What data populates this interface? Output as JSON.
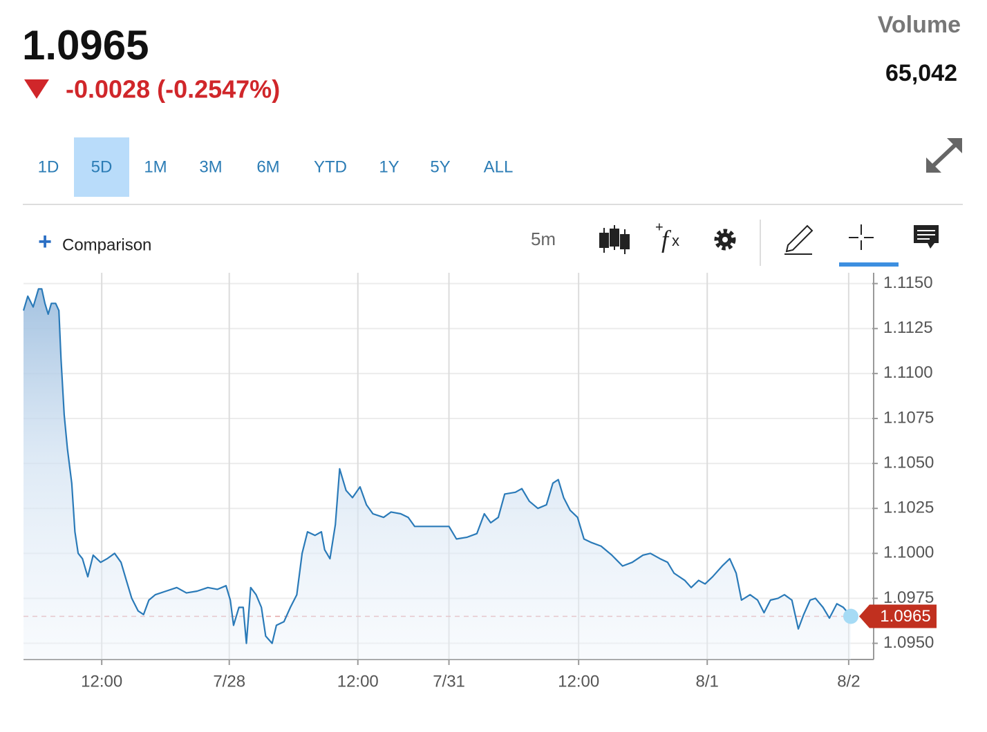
{
  "header": {
    "price": "1.0965",
    "change": "-0.0028 (-0.2547%)",
    "volume_label": "Volume",
    "volume": "65,042"
  },
  "tabs": {
    "items": [
      "1D",
      "5D",
      "1M",
      "3M",
      "6M",
      "YTD",
      "1Y",
      "5Y",
      "ALL"
    ],
    "active": 1
  },
  "toolbar": {
    "comparison": "Comparison",
    "interval": "5m"
  },
  "chart_data": {
    "type": "line",
    "color": "#2a7ab8",
    "area": true,
    "grid": true,
    "x": [
      0.0,
      0.4,
      0.9,
      1.4,
      1.7,
      2.0,
      2.3,
      2.6,
      3.0,
      3.3,
      3.5,
      3.8,
      4.1,
      4.5,
      4.8,
      5.1,
      5.5,
      6.0,
      6.5,
      7.2,
      7.8,
      8.5,
      9.1,
      9.6,
      10.1,
      10.7,
      11.2,
      11.7,
      12.3,
      13.3,
      14.3,
      15.2,
      16.2,
      17.2,
      18.1,
      18.9,
      19.3,
      19.6,
      20.1,
      20.5,
      20.8,
      21.2,
      21.7,
      22.2,
      22.6,
      23.2,
      23.6,
      24.3,
      24.9,
      25.5,
      26.0,
      26.5,
      27.2,
      27.8,
      28.1,
      28.6,
      29.1,
      29.5,
      30.1,
      30.7,
      31.4,
      32.0,
      32.6,
      33.6,
      34.3,
      35.2,
      35.9,
      36.5,
      37.8,
      39.1,
      39.7,
      40.4,
      41.4,
      42.3,
      43.0,
      43.6,
      44.3,
      44.9,
      45.9,
      46.5,
      47.2,
      48.0,
      48.8,
      49.4,
      49.9,
      50.4,
      51.0,
      51.7,
      52.3,
      53.0,
      53.9,
      54.9,
      55.9,
      56.8,
      57.8,
      58.5,
      59.4,
      60.1,
      60.7,
      61.7,
      62.3,
      63.0,
      63.6,
      64.3,
      65.2,
      65.9,
      66.5,
      67.0,
      67.8,
      68.5,
      69.1,
      69.7,
      70.4,
      71.0,
      71.7,
      72.3,
      72.8,
      73.4,
      73.9,
      74.6,
      75.2,
      75.9,
      76.5,
      77.2
    ],
    "values": [
      1.1135,
      1.1143,
      1.1137,
      1.1147,
      1.1147,
      1.1139,
      1.1133,
      1.1139,
      1.1139,
      1.1135,
      1.1108,
      1.1077,
      1.1058,
      1.1039,
      1.1012,
      1.1,
      1.0997,
      1.0987,
      1.0999,
      1.0995,
      1.0997,
      1.1,
      1.0995,
      1.0985,
      1.0975,
      1.0968,
      1.0966,
      1.0974,
      1.0977,
      1.0979,
      1.0981,
      1.0978,
      1.0979,
      1.0981,
      1.098,
      1.0982,
      1.0974,
      1.096,
      1.097,
      1.097,
      1.095,
      1.0981,
      1.0977,
      1.097,
      1.0954,
      1.095,
      1.096,
      1.0962,
      1.097,
      1.0977,
      1.1,
      1.1012,
      1.101,
      1.1012,
      1.1002,
      1.0997,
      1.1016,
      1.1047,
      1.1035,
      1.1031,
      1.1037,
      1.1027,
      1.1022,
      1.102,
      1.1023,
      1.1022,
      1.102,
      1.1015,
      1.1015,
      1.1015,
      1.1015,
      1.1008,
      1.1009,
      1.1011,
      1.1022,
      1.1017,
      1.102,
      1.1033,
      1.1034,
      1.1036,
      1.1029,
      1.1025,
      1.1027,
      1.1039,
      1.1041,
      1.1031,
      1.1024,
      1.102,
      1.1008,
      1.1006,
      1.1004,
      1.0999,
      1.0993,
      1.0995,
      1.0999,
      1.1,
      1.0997,
      1.0995,
      1.0989,
      1.0985,
      1.0981,
      1.0985,
      1.0983,
      1.0987,
      1.0993,
      1.0997,
      1.0989,
      1.0974,
      1.0977,
      1.0974,
      1.0967,
      1.0974,
      1.0975,
      1.0977,
      1.0974,
      1.0958,
      1.0966,
      1.0974,
      1.0975,
      1.097,
      1.0964,
      1.0972,
      1.097,
      1.0965
    ],
    "xlim": [
      0,
      79.2
    ],
    "xticks": [
      {
        "value": 7.3,
        "label": "12:00"
      },
      {
        "value": 19.2,
        "label": "7/28"
      },
      {
        "value": 31.2,
        "label": "12:00"
      },
      {
        "value": 39.7,
        "label": "7/31"
      },
      {
        "value": 51.8,
        "label": "12:00"
      },
      {
        "value": 63.8,
        "label": "8/1"
      },
      {
        "value": 77.0,
        "label": "8/2"
      }
    ],
    "ylim": [
      1.0941,
      1.1156
    ],
    "yticks": [
      {
        "value": 1.095,
        "label": "1.0950"
      },
      1.0975,
      {
        "value": 1.1,
        "label": "1.1000"
      },
      1.1025,
      {
        "value": 1.105,
        "label": "1.1050"
      },
      1.1075,
      {
        "value": 1.11,
        "label": "1.1100"
      },
      1.1125,
      {
        "value": 1.115,
        "label": "1.1150"
      }
    ],
    "last_price": 1.0965
  }
}
